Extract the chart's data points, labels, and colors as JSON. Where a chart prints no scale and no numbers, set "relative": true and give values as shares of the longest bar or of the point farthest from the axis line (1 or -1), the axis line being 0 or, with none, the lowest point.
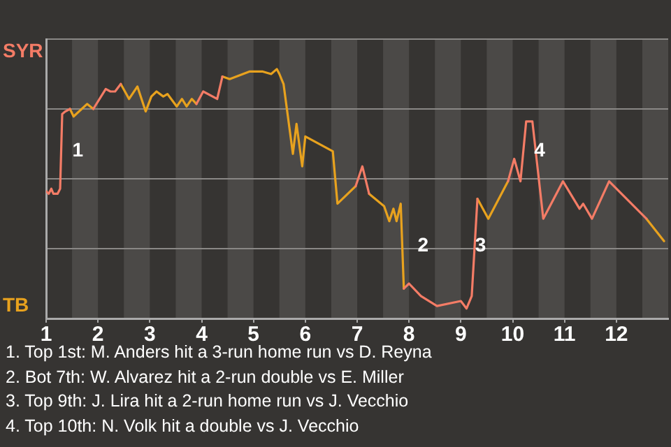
{
  "chart_data": {
    "type": "line",
    "relative": true,
    "x": [
      1,
      1.05,
      1.1,
      1.14,
      1.22,
      1.27,
      1.31,
      1.37,
      1.46,
      1.53,
      1.79,
      1.91,
      2.15,
      2.24,
      2.33,
      2.44,
      2.6,
      2.76,
      2.92,
      3.03,
      3.13,
      3.26,
      3.34,
      3.52,
      3.62,
      3.71,
      3.81,
      3.9,
      4.03,
      4.3,
      4.4,
      4.54,
      4.92,
      5.18,
      5.34,
      5.45,
      5.5,
      5.58,
      5.76,
      5.83,
      5.94,
      6,
      6.53,
      6.62,
      6.97,
      7.1,
      7.23,
      7.52,
      7.62,
      7.7,
      7.76,
      7.84,
      7.9,
      8,
      8.23,
      8.54,
      9,
      9.11,
      9.21,
      9.32,
      9.53,
      9.91,
      10.03,
      10.15,
      10.26,
      10.38,
      10.59,
      10.97,
      11.29,
      11.36,
      11.53,
      11.86,
      12.58,
      12.92
    ],
    "series": [
      {
        "color": "#f47c66",
        "values": [
          0.51,
          0.5,
          0.52,
          0.5,
          0.5,
          0.52,
          0.82,
          0.83,
          0.84,
          null,
          null,
          0.84,
          0.92,
          0.91,
          0.91,
          0.94,
          null,
          null,
          null,
          null,
          null,
          null,
          null,
          null,
          null,
          null,
          null,
          0.86,
          0.91,
          0.88,
          0.97,
          null,
          null,
          null,
          null,
          null,
          null,
          null,
          null,
          null,
          null,
          null,
          null,
          null,
          0.53,
          0.61,
          0.5,
          null,
          null,
          null,
          null,
          null,
          0.12,
          0.14,
          0.09,
          0.05,
          0.07,
          0.04,
          0.09,
          0.48,
          null,
          0.55,
          0.64,
          0.55,
          0.79,
          0.79,
          0.4,
          0.55,
          0.44,
          0.46,
          0.4,
          0.55,
          0.4,
          null
        ]
      },
      {
        "color": "#e8a21e",
        "values": [
          null,
          null,
          null,
          null,
          null,
          null,
          null,
          null,
          0.84,
          0.81,
          0.86,
          0.84,
          null,
          null,
          null,
          0.94,
          0.88,
          0.93,
          0.83,
          0.89,
          0.91,
          0.89,
          0.9,
          0.85,
          0.88,
          0.85,
          0.88,
          0.86,
          null,
          null,
          0.97,
          0.96,
          0.99,
          0.99,
          0.98,
          1,
          0.98,
          0.94,
          0.66,
          0.78,
          0.61,
          0.73,
          0.67,
          0.46,
          0.53,
          null,
          0.5,
          0.45,
          0.39,
          0.44,
          0.39,
          0.46,
          0.12,
          null,
          null,
          null,
          null,
          null,
          null,
          0.48,
          0.4,
          0.55,
          null,
          null,
          null,
          null,
          null,
          null,
          null,
          null,
          null,
          null,
          0.4,
          0.31
        ]
      }
    ],
    "xlim": [
      1,
      13
    ],
    "xticks": [
      1,
      2,
      3,
      4,
      5,
      6,
      7,
      8,
      9,
      10,
      11,
      12
    ],
    "grid": "y",
    "legend": false,
    "marker": "none",
    "line_style": "solid",
    "bands": [
      {
        "axis": "x",
        "from": 1.5,
        "to": 2,
        "color": "#4b4947"
      },
      {
        "axis": "x",
        "from": 2.5,
        "to": 3,
        "color": "#4b4947"
      },
      {
        "axis": "x",
        "from": 3.5,
        "to": 4,
        "color": "#4b4947"
      },
      {
        "axis": "x",
        "from": 4.5,
        "to": 5,
        "color": "#4b4947"
      },
      {
        "axis": "x",
        "from": 5.5,
        "to": 6,
        "color": "#4b4947"
      },
      {
        "axis": "x",
        "from": 6.5,
        "to": 7,
        "color": "#4b4947"
      },
      {
        "axis": "x",
        "from": 7.5,
        "to": 8,
        "color": "#4b4947"
      },
      {
        "axis": "x",
        "from": 8.5,
        "to": 9,
        "color": "#4b4947"
      },
      {
        "axis": "x",
        "from": 9.5,
        "to": 10,
        "color": "#4b4947"
      },
      {
        "axis": "x",
        "from": 10.5,
        "to": 11,
        "color": "#4b4947"
      },
      {
        "axis": "x",
        "from": 11.5,
        "to": 12,
        "color": "#4b4947"
      },
      {
        "axis": "x",
        "from": 12.5,
        "to": 13,
        "color": "#4b4947"
      }
    ],
    "annotations": [
      "SYR",
      "TB",
      {
        "text": "1",
        "x": 1.29,
        "y": 0.67
      },
      {
        "text": "2",
        "x": 7.95,
        "y": 0.29
      },
      {
        "text": "3",
        "x": 9.06,
        "y": 0.29
      },
      {
        "text": "4",
        "x": 10.2,
        "y": 0.67
      },
      "1. Top 1st: M. Anders hit a 3-run home run vs D. Reyna",
      "2. Bot 7th: W. Alvarez hit a 2-run double vs E. Miller",
      "3. Top 9th: J. Lira hit a 2-run home run vs J. Vecchio",
      "4. Top 10th: N. Volk hit a double vs J. Vecchio"
    ]
  }
}
